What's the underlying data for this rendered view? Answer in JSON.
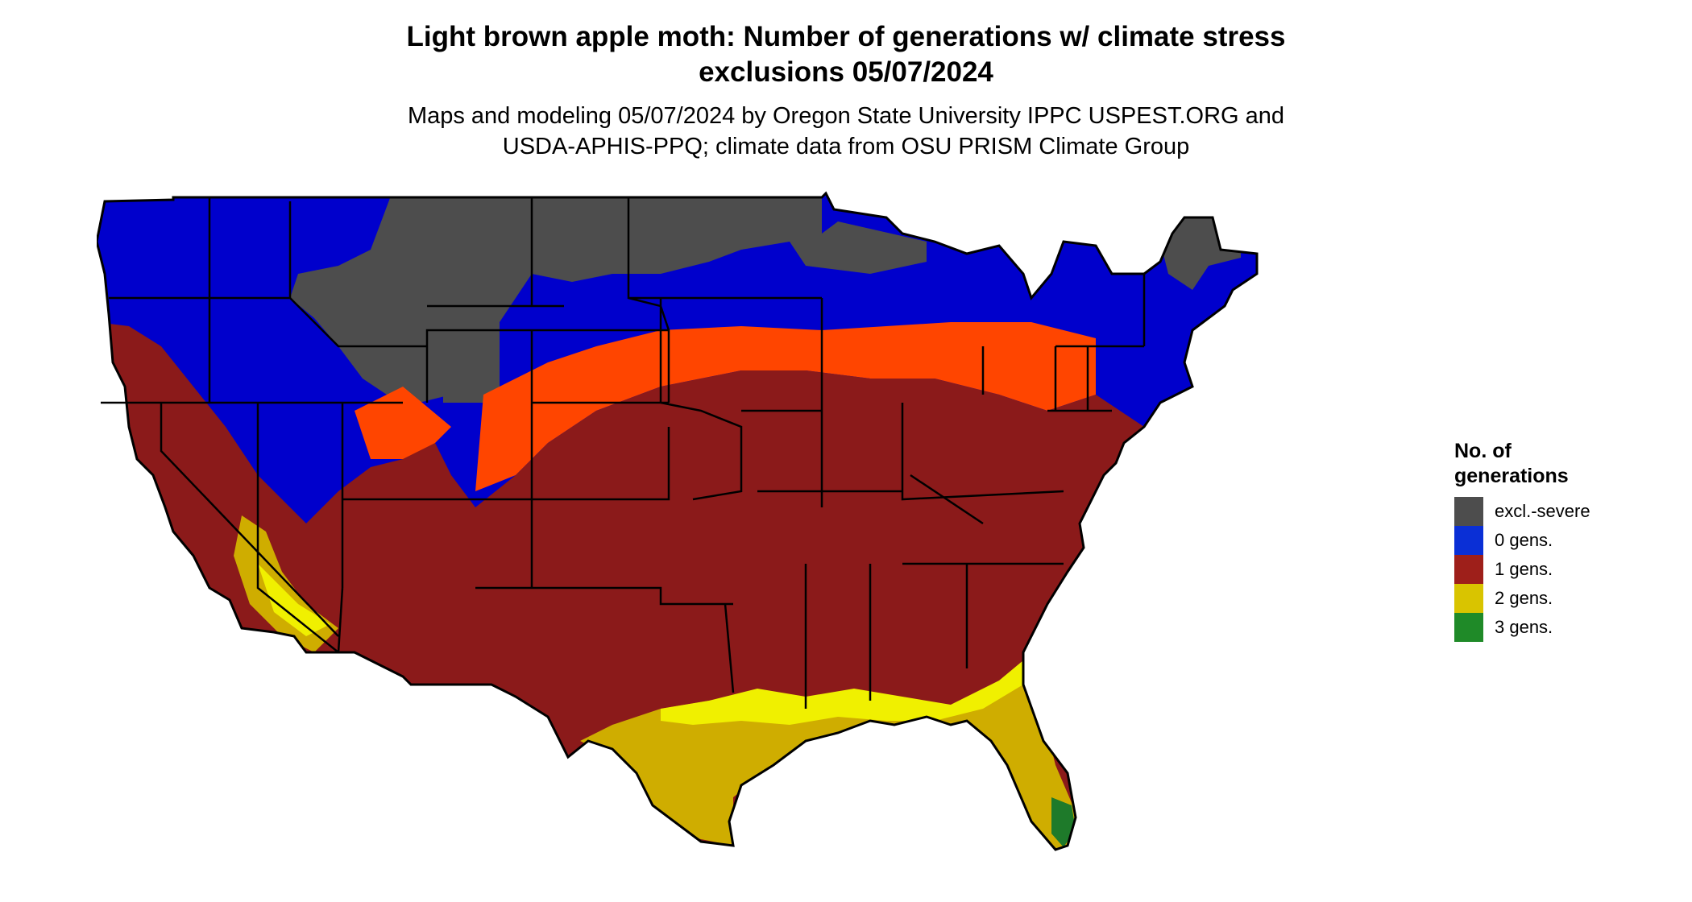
{
  "title": {
    "line1": "Light brown apple moth: Number of generations w/ climate stress",
    "line2": "exclusions 05/07/2024"
  },
  "subtitle": {
    "line1": "Maps and modeling 05/07/2024 by Oregon State University IPPC USPEST.ORG and",
    "line2": "USDA-APHIS-PPQ; climate data from OSU PRISM Climate Group"
  },
  "legend": {
    "title_line1": "No. of",
    "title_line2": "generations",
    "items": [
      {
        "label": "excl.-severe",
        "color": "#4d4d4d"
      },
      {
        "label": "0 gens.",
        "color": "#0a2fd6"
      },
      {
        "label": "1 gens.",
        "color": "#9e1f1a"
      },
      {
        "label": "2 gens.",
        "color": "#d9c400"
      },
      {
        "label": "3 gens.",
        "color": "#1f8a28"
      }
    ]
  },
  "map_colors": {
    "excluded": "#4d4d4d",
    "zero": "#0000cc",
    "transition": "#ff4500",
    "one": "#8b1a1a",
    "two": "#cfad00",
    "two_bright": "#f0f000",
    "three": "#1e7a2a",
    "border": "#000000"
  }
}
